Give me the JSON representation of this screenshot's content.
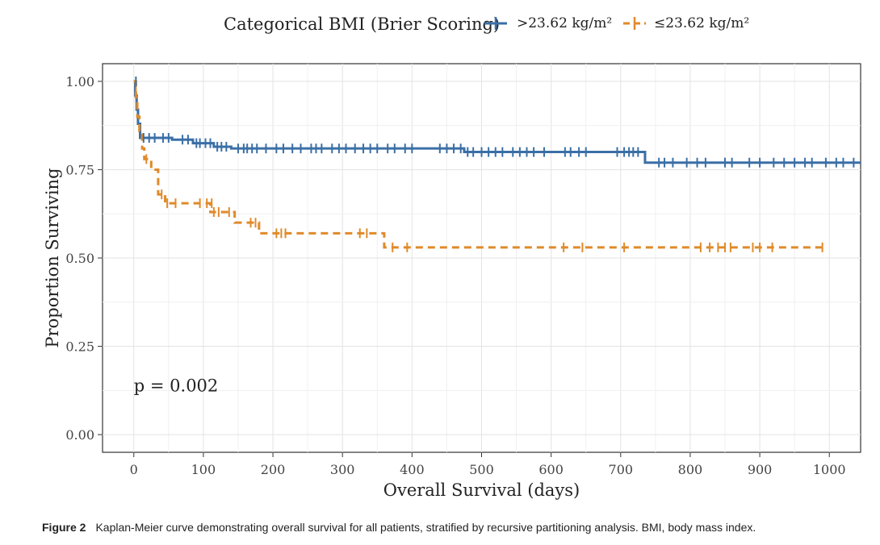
{
  "chart_data": {
    "type": "line",
    "subtype": "kaplan-meier",
    "legend": {
      "title": "Categorical BMI (Brier Scoring)",
      "placement": "top"
    },
    "xlabel": "Overall Survival (days)",
    "ylabel": "Proportion Surviving",
    "xlim": [
      -45,
      1045
    ],
    "ylim": [
      -0.05,
      1.05
    ],
    "xticks": [
      0,
      100,
      200,
      300,
      400,
      500,
      600,
      700,
      800,
      900,
      1000
    ],
    "yticks": [
      0.0,
      0.25,
      0.5,
      0.75,
      1.0
    ],
    "ytick_labels": [
      "0.00",
      "0.25",
      "0.50",
      "0.75",
      "1.00"
    ],
    "grid": true,
    "annotation": "p = 0.002",
    "annotation_at": [
      0,
      0.14
    ],
    "series": [
      {
        "name": ">23.62 kg/m²",
        "color": "#3a6fa6",
        "dash": "solid",
        "steps": [
          [
            0,
            1.0
          ],
          [
            2,
            0.96
          ],
          [
            4,
            0.92
          ],
          [
            6,
            0.88
          ],
          [
            9,
            0.84
          ],
          [
            55,
            0.835
          ],
          [
            85,
            0.825
          ],
          [
            115,
            0.815
          ],
          [
            140,
            0.81
          ],
          [
            475,
            0.8
          ],
          [
            735,
            0.77
          ],
          [
            1045,
            0.77
          ]
        ],
        "censor": [
          [
            3,
            1.0
          ],
          [
            14,
            0.84
          ],
          [
            22,
            0.84
          ],
          [
            30,
            0.84
          ],
          [
            42,
            0.84
          ],
          [
            50,
            0.84
          ],
          [
            70,
            0.835
          ],
          [
            78,
            0.835
          ],
          [
            90,
            0.825
          ],
          [
            95,
            0.825
          ],
          [
            103,
            0.825
          ],
          [
            110,
            0.825
          ],
          [
            120,
            0.815
          ],
          [
            126,
            0.815
          ],
          [
            133,
            0.815
          ],
          [
            150,
            0.81
          ],
          [
            158,
            0.81
          ],
          [
            163,
            0.81
          ],
          [
            170,
            0.81
          ],
          [
            177,
            0.81
          ],
          [
            190,
            0.81
          ],
          [
            205,
            0.81
          ],
          [
            215,
            0.81
          ],
          [
            228,
            0.81
          ],
          [
            240,
            0.81
          ],
          [
            255,
            0.81
          ],
          [
            262,
            0.81
          ],
          [
            270,
            0.81
          ],
          [
            285,
            0.81
          ],
          [
            295,
            0.81
          ],
          [
            305,
            0.81
          ],
          [
            318,
            0.81
          ],
          [
            330,
            0.81
          ],
          [
            340,
            0.81
          ],
          [
            350,
            0.81
          ],
          [
            365,
            0.81
          ],
          [
            375,
            0.81
          ],
          [
            390,
            0.81
          ],
          [
            400,
            0.81
          ],
          [
            440,
            0.81
          ],
          [
            450,
            0.81
          ],
          [
            460,
            0.81
          ],
          [
            470,
            0.81
          ],
          [
            480,
            0.8
          ],
          [
            488,
            0.8
          ],
          [
            500,
            0.8
          ],
          [
            510,
            0.8
          ],
          [
            520,
            0.8
          ],
          [
            530,
            0.8
          ],
          [
            545,
            0.8
          ],
          [
            555,
            0.8
          ],
          [
            565,
            0.8
          ],
          [
            575,
            0.8
          ],
          [
            590,
            0.8
          ],
          [
            620,
            0.8
          ],
          [
            628,
            0.8
          ],
          [
            640,
            0.8
          ],
          [
            650,
            0.8
          ],
          [
            695,
            0.8
          ],
          [
            705,
            0.8
          ],
          [
            712,
            0.8
          ],
          [
            718,
            0.8
          ],
          [
            725,
            0.8
          ],
          [
            755,
            0.77
          ],
          [
            763,
            0.77
          ],
          [
            775,
            0.77
          ],
          [
            795,
            0.77
          ],
          [
            810,
            0.77
          ],
          [
            822,
            0.77
          ],
          [
            850,
            0.77
          ],
          [
            860,
            0.77
          ],
          [
            885,
            0.77
          ],
          [
            900,
            0.77
          ],
          [
            920,
            0.77
          ],
          [
            935,
            0.77
          ],
          [
            950,
            0.77
          ],
          [
            965,
            0.77
          ],
          [
            975,
            0.77
          ],
          [
            995,
            0.77
          ],
          [
            1010,
            0.77
          ],
          [
            1020,
            0.77
          ],
          [
            1035,
            0.77
          ]
        ]
      },
      {
        "name": "≤23.62 kg/m²",
        "color": "#e08a2a",
        "dash": "dashed",
        "steps": [
          [
            0,
            1.0
          ],
          [
            3,
            0.95
          ],
          [
            5,
            0.9
          ],
          [
            8,
            0.86
          ],
          [
            12,
            0.81
          ],
          [
            15,
            0.78
          ],
          [
            25,
            0.75
          ],
          [
            35,
            0.68
          ],
          [
            45,
            0.655
          ],
          [
            110,
            0.63
          ],
          [
            145,
            0.6
          ],
          [
            180,
            0.57
          ],
          [
            360,
            0.53
          ],
          [
            995,
            0.53
          ]
        ],
        "censor": [
          [
            3,
            0.97
          ],
          [
            18,
            0.78
          ],
          [
            40,
            0.68
          ],
          [
            48,
            0.655
          ],
          [
            60,
            0.655
          ],
          [
            95,
            0.655
          ],
          [
            105,
            0.655
          ],
          [
            112,
            0.655
          ],
          [
            115,
            0.63
          ],
          [
            122,
            0.63
          ],
          [
            137,
            0.63
          ],
          [
            168,
            0.6
          ],
          [
            175,
            0.6
          ],
          [
            205,
            0.57
          ],
          [
            212,
            0.57
          ],
          [
            218,
            0.57
          ],
          [
            325,
            0.57
          ],
          [
            335,
            0.57
          ],
          [
            372,
            0.53
          ],
          [
            393,
            0.53
          ],
          [
            618,
            0.53
          ],
          [
            645,
            0.53
          ],
          [
            705,
            0.53
          ],
          [
            815,
            0.53
          ],
          [
            828,
            0.53
          ],
          [
            840,
            0.53
          ],
          [
            850,
            0.53
          ],
          [
            858,
            0.53
          ],
          [
            890,
            0.53
          ],
          [
            900,
            0.53
          ],
          [
            918,
            0.53
          ],
          [
            990,
            0.53
          ]
        ]
      }
    ]
  },
  "caption": {
    "label": "Figure 2",
    "text": "Kaplan-Meier curve demonstrating overall survival for all patients, stratified by recursive partitioning analysis. BMI, body mass index."
  }
}
